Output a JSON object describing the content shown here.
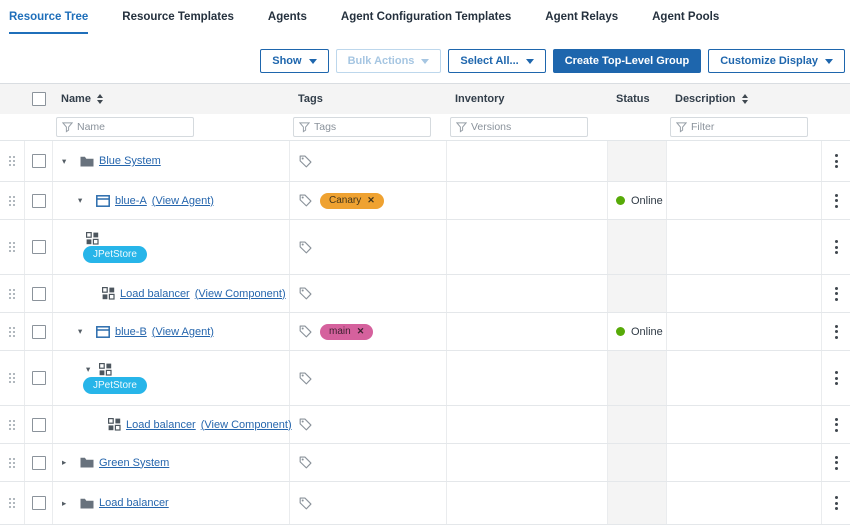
{
  "tabs": [
    {
      "label": "Resource Tree",
      "active": true
    },
    {
      "label": "Resource Templates",
      "active": false
    },
    {
      "label": "Agents",
      "active": false
    },
    {
      "label": "Agent Configuration Templates",
      "active": false
    },
    {
      "label": "Agent Relays",
      "active": false
    },
    {
      "label": "Agent Pools",
      "active": false
    }
  ],
  "toolbar": {
    "show_label": "Show",
    "bulk_actions_label": "Bulk Actions",
    "select_all_label": "Select All...",
    "create_group_label": "Create Top-Level Group",
    "customize_label": "Customize Display"
  },
  "table": {
    "columns": {
      "name": "Name",
      "tags": "Tags",
      "inventory": "Inventory",
      "status": "Status",
      "description": "Description"
    },
    "filters": {
      "name_placeholder": "Name",
      "tags_placeholder": "Tags",
      "inventory_placeholder": "Versions",
      "description_placeholder": "Filter"
    },
    "rows": [
      {
        "kind": "group",
        "level": 0,
        "expand": "expanded",
        "name": "Blue System",
        "action": "",
        "tag": null,
        "status": ""
      },
      {
        "kind": "agent",
        "level": 1,
        "expand": "expanded",
        "name": "blue-A",
        "action": "(View Agent)",
        "tag": {
          "label": "Canary",
          "color": "#efa231",
          "text_color": "#43351a"
        },
        "status": "Online"
      },
      {
        "kind": "component-pill",
        "level": 2,
        "expand": "none",
        "pill": "JPetStore",
        "pill_color": "#27b5e9",
        "tag": null,
        "status": ""
      },
      {
        "kind": "component",
        "level": 3,
        "expand": "none",
        "name": "Load balancer",
        "action": "(View Component)",
        "tag": null,
        "status": ""
      },
      {
        "kind": "agent",
        "level": 1,
        "expand": "expanded",
        "name": "blue-B",
        "action": "(View Agent)",
        "tag": {
          "label": "main",
          "color": "#d5619d",
          "text_color": "#3b1f2e"
        },
        "status": "Online"
      },
      {
        "kind": "component-pill",
        "level": 2,
        "expand": "expanded",
        "pill": "JPetStore",
        "pill_color": "#27b5e9",
        "tag": null,
        "status": ""
      },
      {
        "kind": "component",
        "level": 4,
        "expand": "none",
        "name": "Load balancer",
        "action": "(View Component)",
        "tag": null,
        "status": ""
      },
      {
        "kind": "group",
        "level": 0,
        "expand": "collapsed",
        "name": "Green System",
        "action": "",
        "tag": null,
        "status": ""
      },
      {
        "kind": "group",
        "level": 0,
        "expand": "collapsed",
        "name": "Load balancer",
        "action": "",
        "tag": null,
        "status": ""
      }
    ]
  },
  "colors": {
    "accent_blue": "#1f6fba",
    "link_blue": "#2666ad",
    "online_green": "#57aa08",
    "tag_canary": "#efa231",
    "tag_main": "#d5619d",
    "pill_jpetstore": "#27b5e9"
  }
}
